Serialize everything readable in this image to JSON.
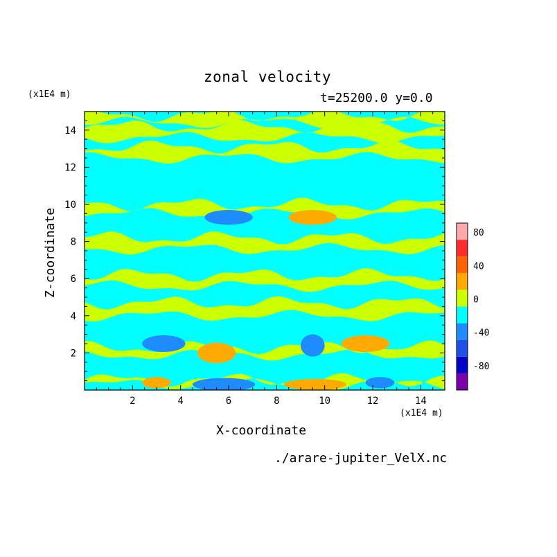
{
  "chart_data": {
    "type": "heatmap",
    "title": "zonal velocity",
    "subtitle": "t=25200.0 y=0.0",
    "xlabel": "X-coordinate",
    "ylabel": "Z-coordinate",
    "x_scale_label": "(x1E4 m)",
    "z_scale_label": "(x1E4 m)",
    "xlim": [
      0,
      15
    ],
    "ylim": [
      0,
      15
    ],
    "xticks": [
      2,
      4,
      6,
      8,
      10,
      12,
      14
    ],
    "yticks": [
      2,
      4,
      6,
      8,
      10,
      12,
      14
    ],
    "colorbar": {
      "levels": [
        -100,
        -80,
        -60,
        -40,
        -20,
        0,
        20,
        40,
        60,
        80,
        100
      ],
      "colors": [
        "#7a00a8",
        "#0000c8",
        "#1e50e6",
        "#1e8cff",
        "#00ffff",
        "#ccff00",
        "#ffaa00",
        "#ff6400",
        "#ff2d2d",
        "#ffaaaa"
      ],
      "tick_labels": [
        "80",
        "40",
        "0",
        "-40",
        "-80"
      ],
      "tick_values": [
        80,
        40,
        0,
        -40,
        -80
      ]
    },
    "background_color": "#00ffff",
    "bands_positive": [
      [
        0.3,
        0.55
      ],
      [
        1.9,
        2.3
      ],
      [
        4.0,
        4.7
      ],
      [
        5.6,
        6.2
      ],
      [
        7.6,
        8.2
      ],
      [
        9.5,
        10.0
      ],
      [
        12.5,
        13.1
      ],
      [
        13.6,
        14.2
      ],
      [
        14.4,
        14.8
      ]
    ],
    "blobs": [
      {
        "color": "#1e8cff",
        "cx": 3.3,
        "cz": 2.5,
        "rx": 0.9,
        "rz": 0.45
      },
      {
        "color": "#ffaa00",
        "cx": 5.5,
        "cz": 2.0,
        "rx": 0.8,
        "rz": 0.55
      },
      {
        "color": "#1e8cff",
        "cx": 9.5,
        "cz": 2.4,
        "rx": 0.5,
        "rz": 0.6
      },
      {
        "color": "#ffaa00",
        "cx": 11.7,
        "cz": 2.5,
        "rx": 1.0,
        "rz": 0.45
      },
      {
        "color": "#1e8cff",
        "cx": 6.0,
        "cz": 9.3,
        "rx": 1.0,
        "rz": 0.4
      },
      {
        "color": "#ffaa00",
        "cx": 9.5,
        "cz": 9.3,
        "rx": 1.0,
        "rz": 0.4
      },
      {
        "color": "#1e8cff",
        "cx": 5.8,
        "cz": 0.3,
        "rx": 1.3,
        "rz": 0.35
      },
      {
        "color": "#ffaa00",
        "cx": 9.6,
        "cz": 0.3,
        "rx": 1.3,
        "rz": 0.3
      },
      {
        "color": "#1e8cff",
        "cx": 12.3,
        "cz": 0.4,
        "rx": 0.6,
        "rz": 0.3
      },
      {
        "color": "#ffaa00",
        "cx": 3.0,
        "cz": 0.4,
        "rx": 0.6,
        "rz": 0.3
      }
    ],
    "source": "./arare-jupiter_VelX.nc"
  }
}
